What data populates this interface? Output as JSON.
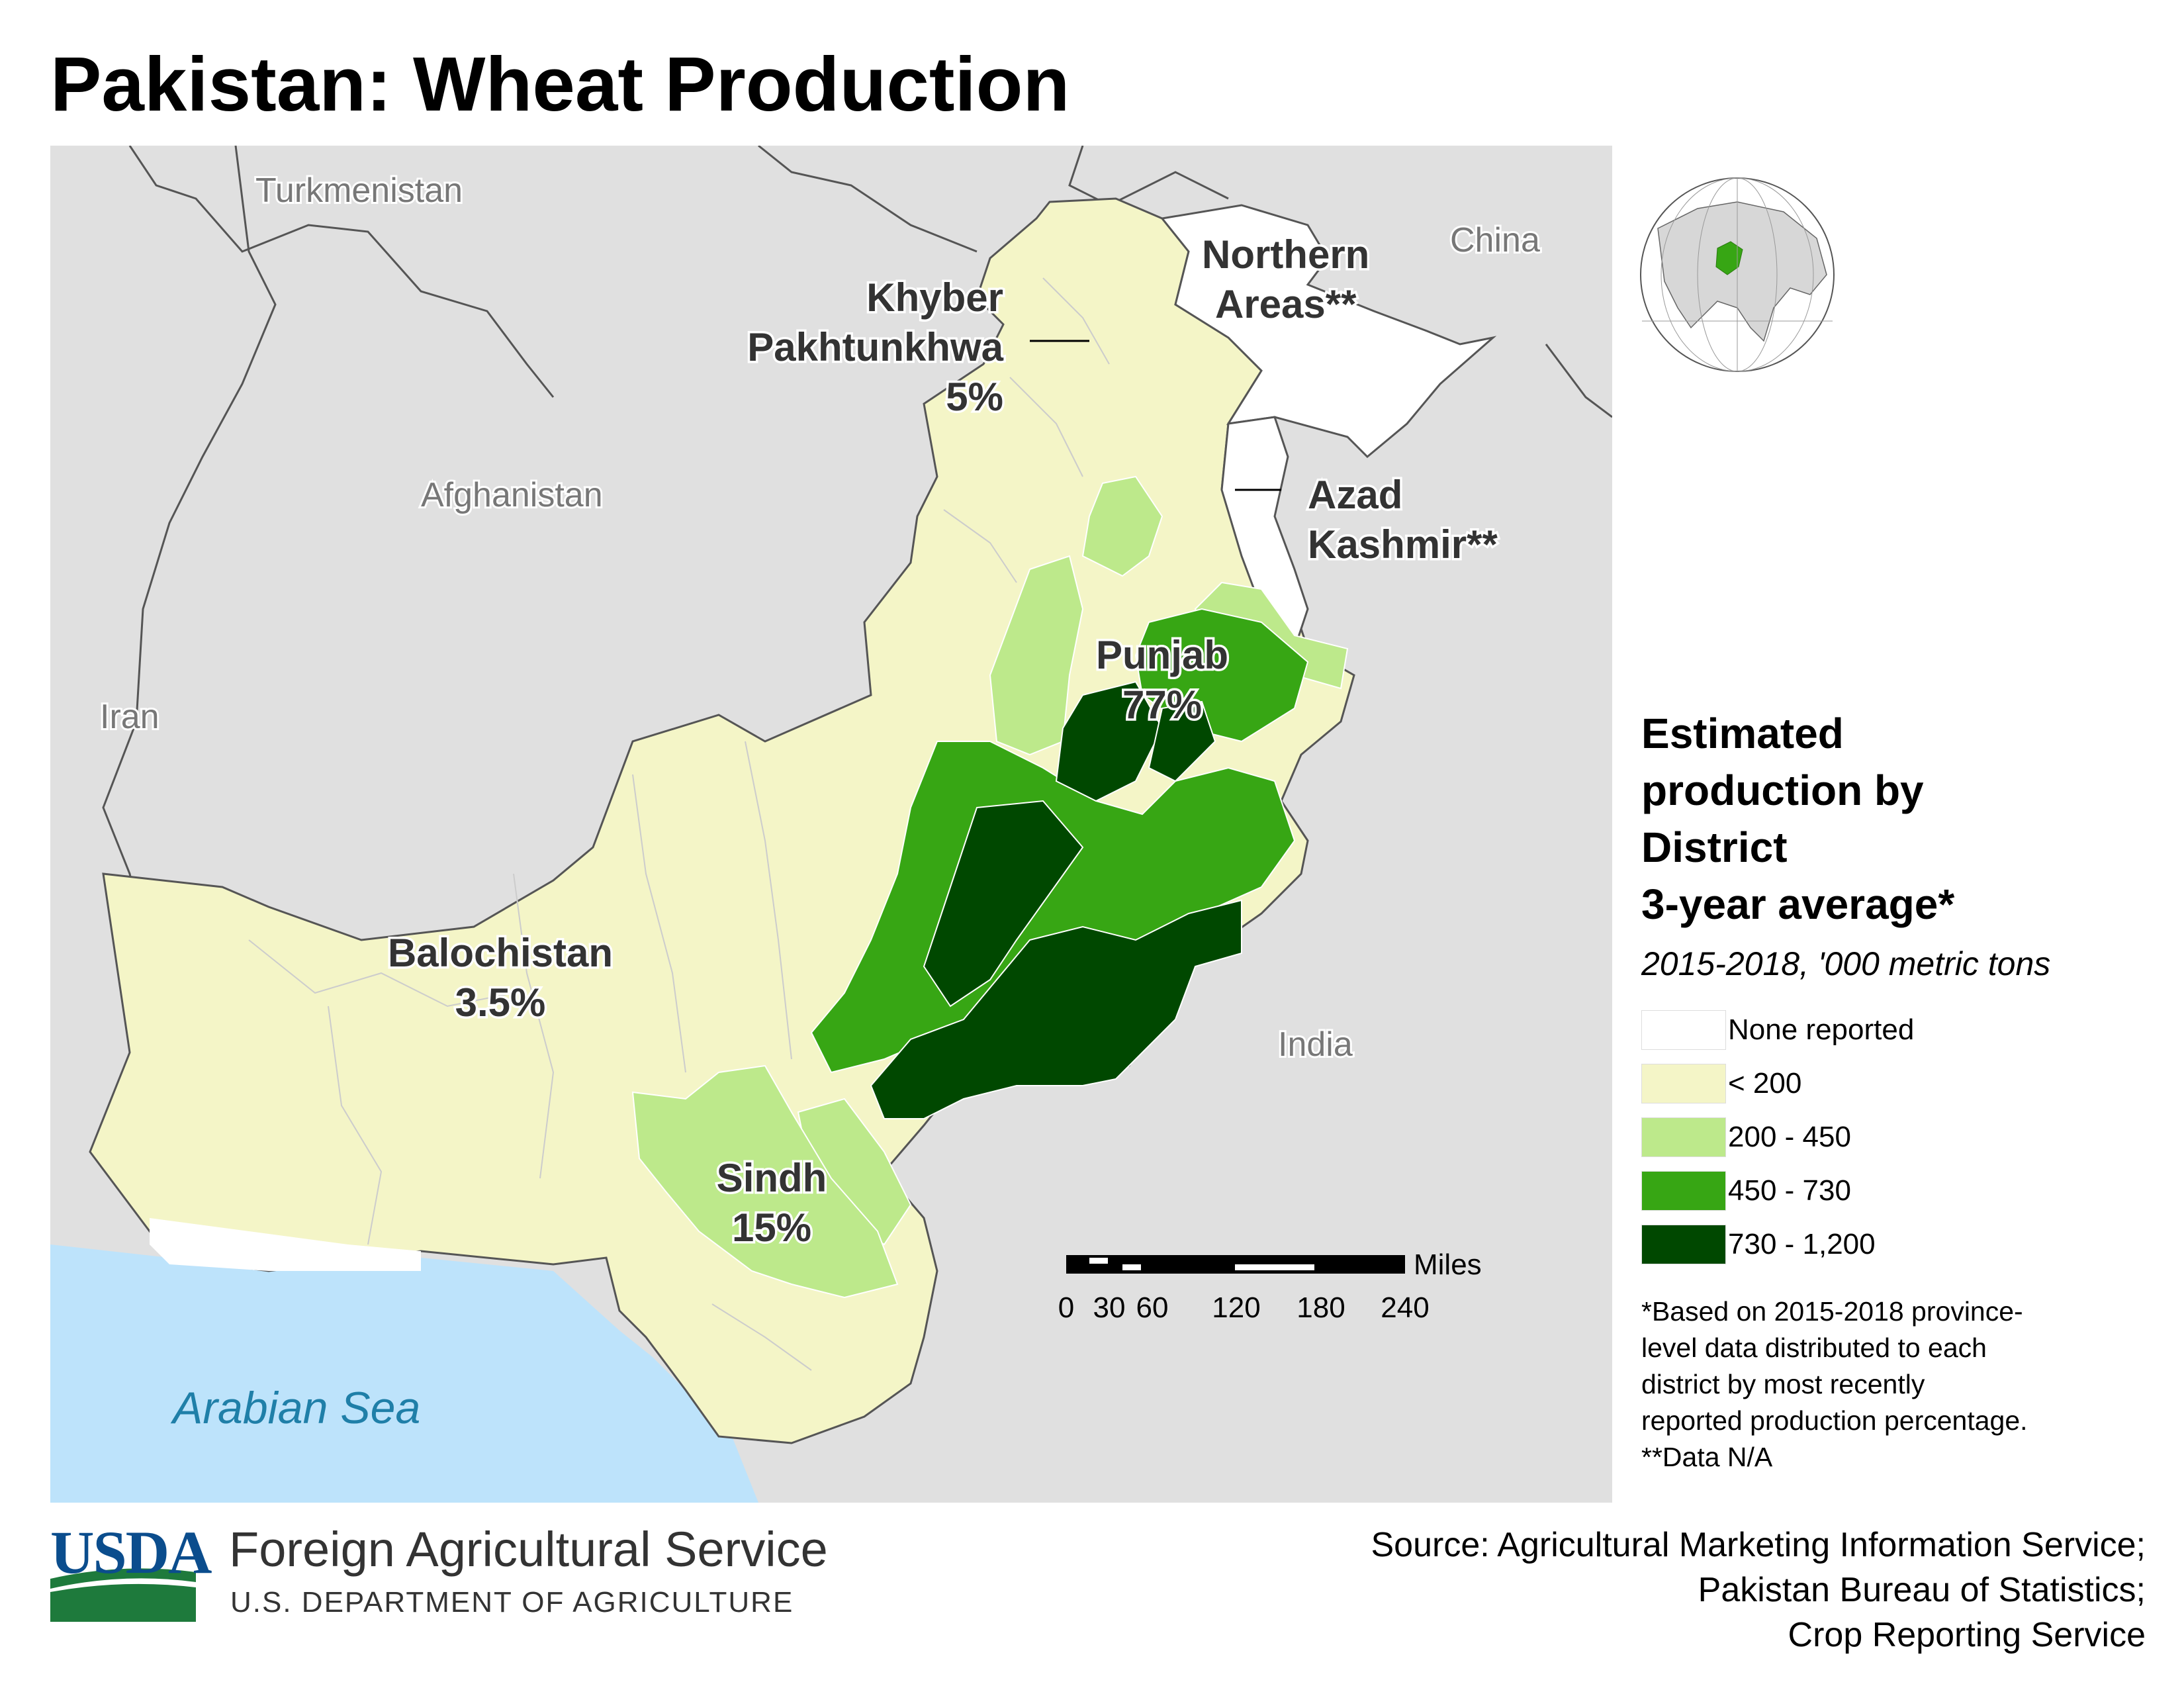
{
  "title": "Pakistan: Wheat Production",
  "colors": {
    "none_reported": "#ffffff",
    "lt_200": "#f4f5c7",
    "r200_450": "#bde98b",
    "r450_730": "#37a614",
    "r730_1200": "#004800",
    "neighbors": "#e0e0e0",
    "sea": "#bde3fb",
    "usda_blue": "#0b4d8d",
    "usda_green": "#1e7a3c"
  },
  "countries": {
    "turkmenistan": "Turkmenistan",
    "afghanistan": "Afghanistan",
    "iran": "Iran",
    "china": "China",
    "india": "India"
  },
  "sea_label": "Arabian Sea",
  "provinces": {
    "khyber_line1": "Khyber",
    "khyber_line2": "Pakhtunkhwa",
    "khyber_share": "5%",
    "northern_line1": "Northern",
    "northern_line2": "Areas**",
    "azad_line1": "Azad",
    "azad_line2": "Kashmir**",
    "punjab_name": "Punjab",
    "punjab_share": "77%",
    "balochistan_name": "Balochistan",
    "balochistan_share": "3.5%",
    "sindh_name": "Sindh",
    "sindh_share": "15%"
  },
  "scale_bar": {
    "unit": "Miles",
    "ticks": [
      "0",
      "30",
      "60",
      "120",
      "180",
      "240"
    ]
  },
  "legend": {
    "title_line1": "Estimated",
    "title_line2": "production by",
    "title_line3": "District",
    "title_line4": "3-year average*",
    "subtitle": "2015-2018, '000 metric tons",
    "items": [
      {
        "label": "None reported",
        "color": "#ffffff"
      },
      {
        "label": "< 200",
        "color": "#f4f5c7"
      },
      {
        "label": "200 - 450",
        "color": "#bde98b"
      },
      {
        "label": "450 - 730",
        "color": "#37a614"
      },
      {
        "label": "730 - 1,200",
        "color": "#004800"
      }
    ],
    "note_line1": "*Based on 2015-2018 province-",
    "note_line2": "level data distributed to each",
    "note_line3": "district by most recently",
    "note_line4": "reported production percentage.",
    "note_line5": "**Data N/A"
  },
  "footer": {
    "logo_text": "USDA",
    "agency": "Foreign Agricultural Service",
    "department": "U.S. DEPARTMENT OF AGRICULTURE",
    "source_line1": "Source: Agricultural Marketing Information Service;",
    "source_line2": "Pakistan Bureau of Statistics;",
    "source_line3": "Crop Reporting Service"
  }
}
